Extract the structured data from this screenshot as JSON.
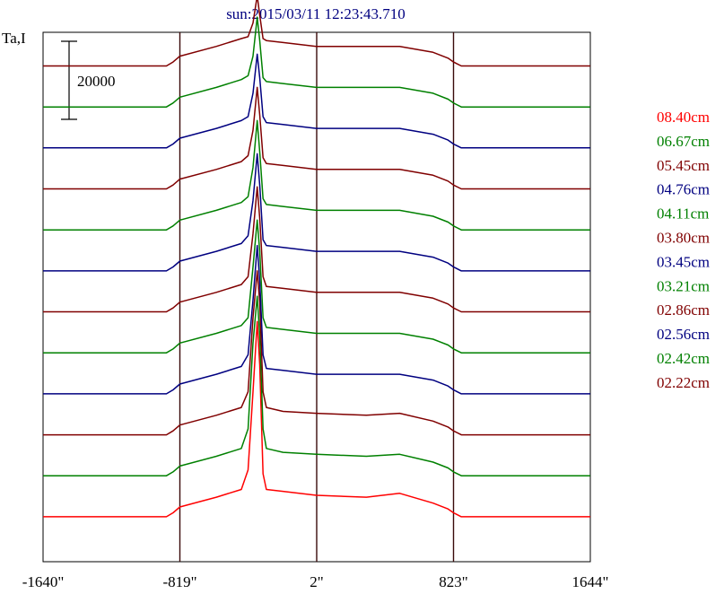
{
  "chart_data": {
    "type": "line",
    "title": "sun:2015/03/11 12:23:43.710",
    "ylabel": "Ta,I",
    "scale_bar_label": "20000",
    "scale_bar_value": 20000,
    "x_ticks": [
      {
        "value": -1640,
        "label": "-1640\""
      },
      {
        "value": -819,
        "label": "-819\""
      },
      {
        "value": 2,
        "label": "2\""
      },
      {
        "value": 823,
        "label": "823\""
      },
      {
        "value": 1644,
        "label": "1644\""
      }
    ],
    "xlim": [
      -1640,
      1644
    ],
    "vertical_lines": [
      -819,
      2,
      823
    ],
    "profile_x": [
      -1640,
      -900,
      -860,
      -819,
      -600,
      -450,
      -410,
      -380,
      -355,
      -340,
      -320,
      -300,
      -200,
      0,
      300,
      500,
      700,
      790,
      823,
      870,
      1644
    ],
    "series": [
      {
        "name": "08.40cm",
        "color": "#ff0000",
        "offset": 0,
        "values": [
          6000,
          6000,
          7000,
          8500,
          11000,
          13000,
          18000,
          38000,
          56000,
          45000,
          17000,
          13000,
          12500,
          11500,
          11000,
          12000,
          9500,
          8000,
          7000,
          6000,
          6000
        ]
      },
      {
        "name": "06.67cm",
        "color": "#008000",
        "offset": 10500,
        "values": [
          6000,
          6000,
          7000,
          8500,
          11000,
          13000,
          18000,
          40000,
          52000,
          42000,
          18000,
          13000,
          12000,
          11500,
          11000,
          11500,
          9500,
          8000,
          7000,
          6000,
          6000
        ]
      },
      {
        "name": "05.45cm",
        "color": "#800000",
        "offset": 21000,
        "values": [
          6000,
          6000,
          7000,
          8500,
          11000,
          13000,
          17000,
          36000,
          48000,
          40000,
          17000,
          13000,
          12000,
          11500,
          11000,
          11500,
          9500,
          8000,
          7000,
          6000,
          6000
        ]
      },
      {
        "name": "04.76cm",
        "color": "#000080",
        "offset": 31500,
        "values": [
          6000,
          6000,
          7000,
          8500,
          11000,
          13000,
          16000,
          30000,
          44000,
          35000,
          16000,
          12500,
          12000,
          11000,
          11000,
          11000,
          9500,
          8000,
          7000,
          6000,
          6000
        ]
      },
      {
        "name": "04.11cm",
        "color": "#008000",
        "offset": 42000,
        "values": [
          6000,
          6000,
          7000,
          8500,
          11000,
          13000,
          15000,
          28000,
          40000,
          32000,
          15000,
          12500,
          12000,
          11000,
          11000,
          11000,
          9500,
          8000,
          7000,
          6000,
          6000
        ]
      },
      {
        "name": "03.80cm",
        "color": "#800000",
        "offset": 52500,
        "values": [
          6000,
          6000,
          7000,
          8500,
          11000,
          13000,
          15000,
          26000,
          38000,
          30000,
          15000,
          12500,
          12000,
          11000,
          11000,
          11000,
          9500,
          8000,
          7000,
          6000,
          6000
        ]
      },
      {
        "name": "03.45cm",
        "color": "#000080",
        "offset": 63000,
        "values": [
          6000,
          6000,
          7000,
          8500,
          11000,
          13000,
          15000,
          24000,
          36000,
          28000,
          14000,
          12500,
          12000,
          11000,
          11000,
          11000,
          9500,
          8000,
          7000,
          6000,
          6000
        ]
      },
      {
        "name": "03.21cm",
        "color": "#008000",
        "offset": 73500,
        "values": [
          6000,
          6000,
          7000,
          8500,
          11000,
          13000,
          14500,
          22000,
          34000,
          26000,
          14000,
          12500,
          12000,
          11000,
          11000,
          11000,
          9500,
          8000,
          7000,
          6000,
          6000
        ]
      },
      {
        "name": "02.86cm",
        "color": "#800000",
        "offset": 84000,
        "values": [
          6000,
          6000,
          7000,
          8500,
          11000,
          13000,
          14500,
          21000,
          32000,
          25000,
          14000,
          12500,
          12000,
          11000,
          11000,
          11000,
          9500,
          8000,
          7000,
          6000,
          6000
        ]
      },
      {
        "name": "02.56cm",
        "color": "#000080",
        "offset": 94500,
        "values": [
          6000,
          6000,
          7000,
          8500,
          11000,
          13000,
          14000,
          20000,
          30000,
          24000,
          14000,
          12500,
          12000,
          11000,
          11000,
          11000,
          9500,
          8000,
          7000,
          6000,
          6000
        ]
      },
      {
        "name": "02.42cm",
        "color": "#008000",
        "offset": 105000,
        "values": [
          6000,
          6000,
          7000,
          8500,
          11000,
          13000,
          14000,
          19000,
          29000,
          23000,
          13500,
          12500,
          12000,
          11000,
          11000,
          11000,
          9500,
          8000,
          7000,
          6000,
          6000
        ]
      },
      {
        "name": "02.22cm",
        "color": "#800000",
        "offset": 115500,
        "values": [
          6000,
          6000,
          7000,
          8500,
          11000,
          13000,
          13500,
          17000,
          24000,
          19000,
          13000,
          12500,
          12000,
          11000,
          11000,
          11000,
          9500,
          8000,
          7000,
          6000,
          6000
        ]
      }
    ]
  }
}
